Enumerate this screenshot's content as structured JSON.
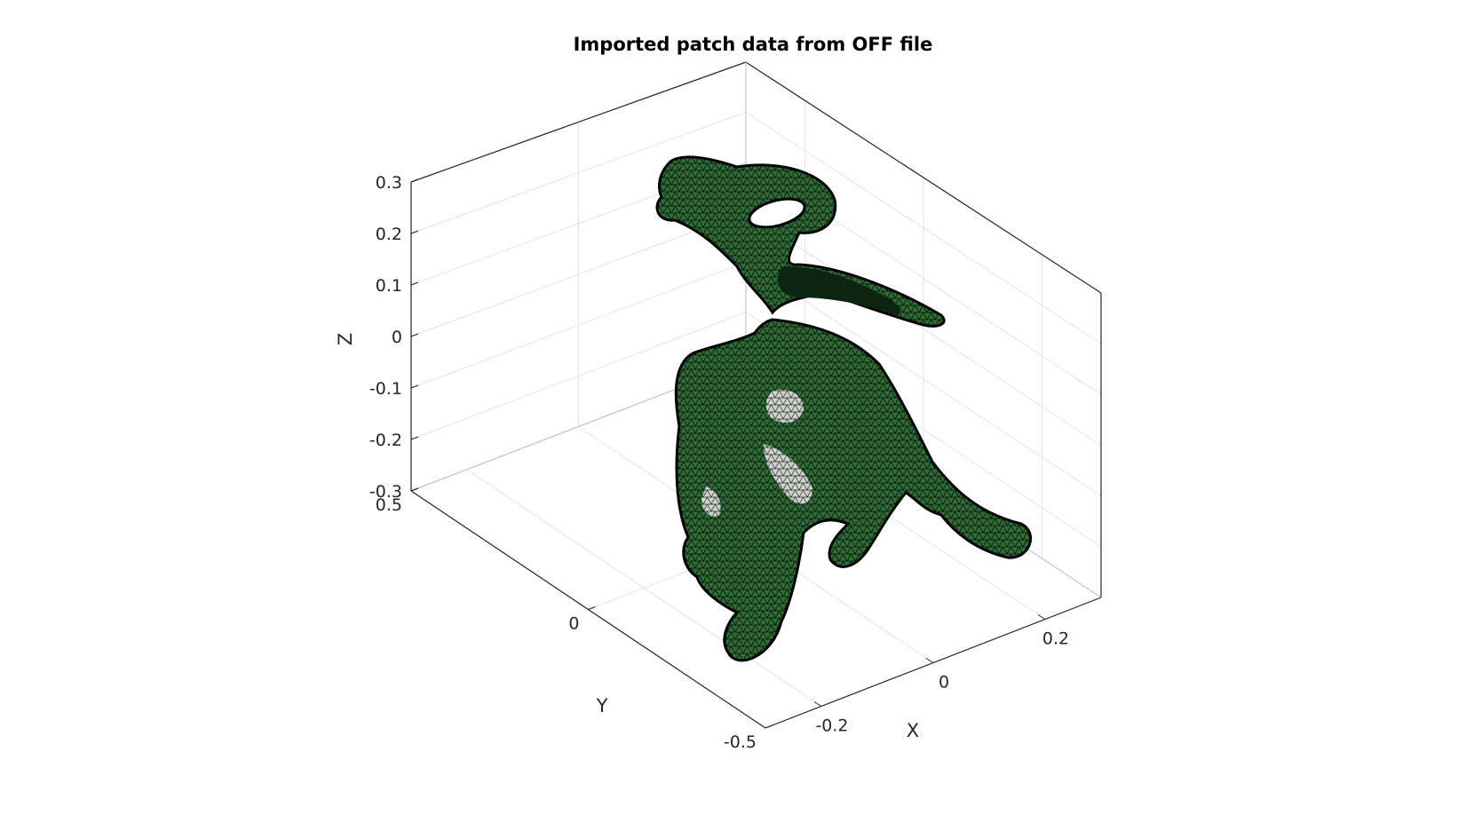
{
  "chart_data": {
    "type": "surface3d",
    "title": "Imported patch data from OFF file",
    "xlabel": "X",
    "ylabel": "Y",
    "zlabel": "Z",
    "xlim": [
      -0.3,
      0.3
    ],
    "ylim": [
      -0.5,
      0.5
    ],
    "zlim": [
      -0.3,
      0.3
    ],
    "x_ticks": [
      "-0.2",
      "0",
      "0.2"
    ],
    "y_ticks": [
      "-0.5",
      "0",
      "0.5"
    ],
    "z_ticks": [
      "-0.3",
      "-0.2",
      "-0.1",
      "0",
      "0.1",
      "0.2",
      "0.3"
    ],
    "grid": true,
    "box": true,
    "mesh": {
      "description": "triangulated elephant model",
      "face_color": "#2c6b34",
      "edge_color": "#000000",
      "highlight_color": "#d9d9d9"
    }
  }
}
